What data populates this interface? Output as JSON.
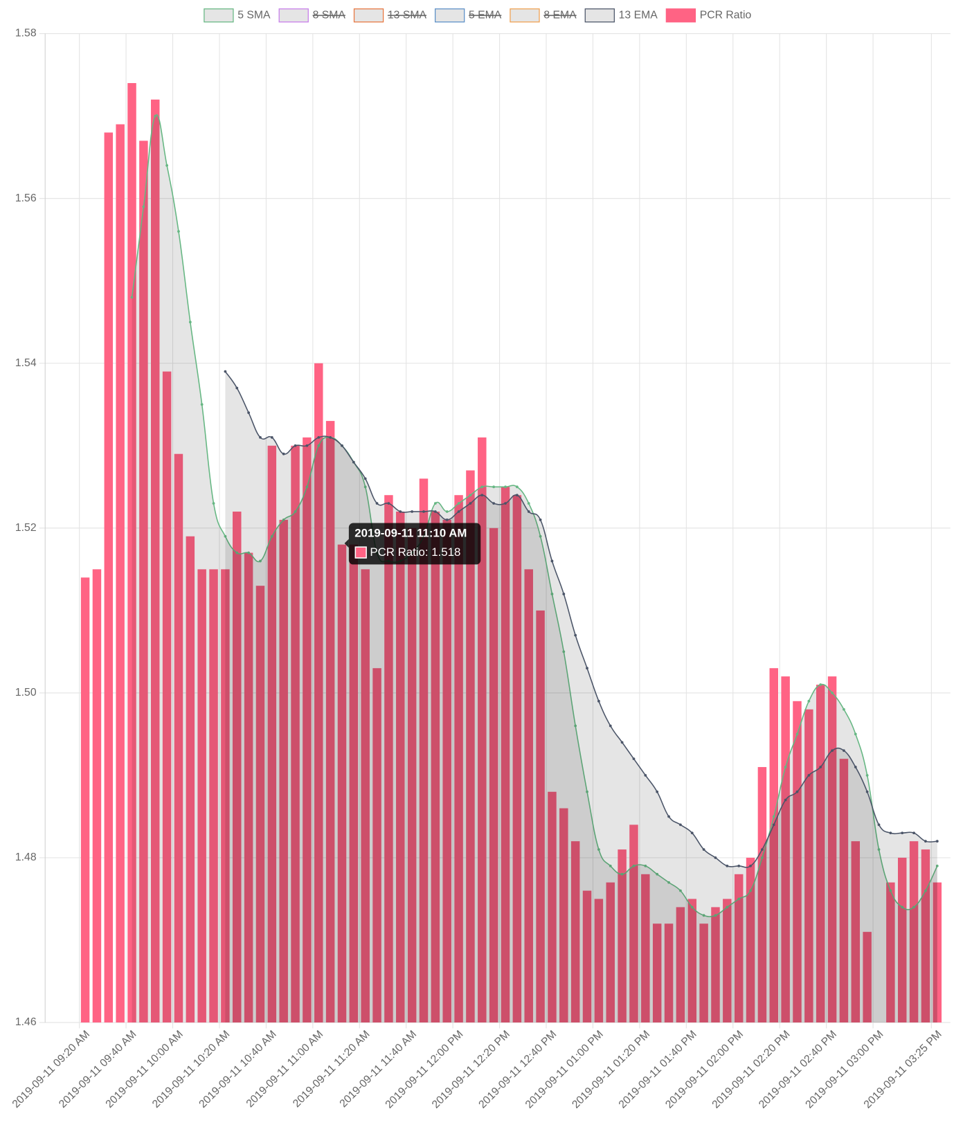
{
  "chart_data": {
    "type": "bar",
    "categories": [
      "2019-09-11 09:20 AM",
      null,
      null,
      null,
      "2019-09-11 09:40 AM",
      null,
      null,
      null,
      "2019-09-11 10:00 AM",
      null,
      null,
      null,
      "2019-09-11 10:20 AM",
      null,
      null,
      null,
      "2019-09-11 10:40 AM",
      null,
      null,
      null,
      "2019-09-11 11:00 AM",
      null,
      null,
      null,
      "2019-09-11 11:20 AM",
      null,
      null,
      null,
      "2019-09-11 11:40 AM",
      null,
      null,
      null,
      "2019-09-11 12:00 PM",
      null,
      null,
      null,
      "2019-09-11 12:20 PM",
      null,
      null,
      null,
      "2019-09-11 12:40 PM",
      null,
      null,
      null,
      "2019-09-11 01:00 PM",
      null,
      null,
      null,
      "2019-09-11 01:20 PM",
      null,
      null,
      null,
      "2019-09-11 01:40 PM",
      null,
      null,
      null,
      "2019-09-11 02:00 PM",
      null,
      null,
      null,
      "2019-09-11 02:20 PM",
      null,
      null,
      null,
      "2019-09-11 02:40 PM",
      null,
      null,
      null,
      "2019-09-11 03:00 PM",
      null,
      null,
      null,
      null,
      "2019-09-11 03:25 PM"
    ],
    "ylim": [
      1.46,
      1.58
    ],
    "yticks": [
      1.46,
      1.48,
      {
        "value": 1.5,
        "label": "1.50"
      },
      1.52,
      1.54,
      1.56,
      1.58
    ],
    "grid": true,
    "legend": "top",
    "series": [
      {
        "name": "5 SMA",
        "type": "line",
        "color": "#66b783",
        "fill": true,
        "values": [
          null,
          null,
          null,
          null,
          1.548,
          1.559,
          1.57,
          1.564,
          1.556,
          1.545,
          1.535,
          1.523,
          1.519,
          1.517,
          1.517,
          1.516,
          1.519,
          1.521,
          1.522,
          1.525,
          1.53,
          1.531,
          1.53,
          1.528,
          1.525,
          1.517,
          1.516,
          1.516,
          1.517,
          1.519,
          1.523,
          1.522,
          1.523,
          1.524,
          1.525,
          1.525,
          1.525,
          1.525,
          1.523,
          1.519,
          1.512,
          1.505,
          1.496,
          1.488,
          1.481,
          1.479,
          1.478,
          1.479,
          1.479,
          1.478,
          1.477,
          1.476,
          1.474,
          1.473,
          1.473,
          1.474,
          1.475,
          1.476,
          1.48,
          1.485,
          1.491,
          1.495,
          1.499,
          1.501,
          1.5,
          1.498,
          1.495,
          1.49,
          1.481,
          1.476,
          1.474,
          1.474,
          1.476,
          1.479
        ]
      },
      {
        "name": "8 SMA",
        "type": "line",
        "color": "#c77dea",
        "hidden": true
      },
      {
        "name": "13 SMA",
        "type": "line",
        "color": "#e8763f",
        "hidden": true
      },
      {
        "name": "5 EMA",
        "type": "line",
        "color": "#5b8fc7",
        "hidden": true
      },
      {
        "name": "8 EMA",
        "type": "line",
        "color": "#f0a050",
        "hidden": true
      },
      {
        "name": "13 EMA",
        "type": "line",
        "color": "#4b5568",
        "fill": true,
        "values": [
          null,
          null,
          null,
          null,
          null,
          null,
          null,
          null,
          null,
          null,
          null,
          null,
          1.539,
          1.537,
          1.534,
          1.531,
          1.531,
          1.529,
          1.53,
          1.53,
          1.531,
          1.531,
          1.53,
          1.528,
          1.526,
          1.523,
          1.523,
          1.522,
          1.522,
          1.522,
          1.522,
          1.521,
          1.522,
          1.523,
          1.524,
          1.523,
          1.523,
          1.524,
          1.522,
          1.521,
          1.516,
          1.512,
          1.507,
          1.503,
          1.499,
          1.496,
          1.494,
          1.492,
          1.49,
          1.488,
          1.485,
          1.484,
          1.483,
          1.481,
          1.48,
          1.479,
          1.479,
          1.479,
          1.481,
          1.484,
          1.487,
          1.488,
          1.49,
          1.491,
          1.493,
          1.493,
          1.491,
          1.488,
          1.484,
          1.483,
          1.483,
          1.483,
          1.482,
          1.482
        ]
      },
      {
        "name": "PCR Ratio",
        "type": "bar",
        "color": "#ff6384",
        "values": [
          1.514,
          1.515,
          1.568,
          1.569,
          1.574,
          1.567,
          1.572,
          1.539,
          1.529,
          1.519,
          1.515,
          1.515,
          1.515,
          1.522,
          1.517,
          1.513,
          1.53,
          1.521,
          1.53,
          1.531,
          1.54,
          1.533,
          1.518,
          1.518,
          1.515,
          1.503,
          1.524,
          1.522,
          1.52,
          1.526,
          1.522,
          1.521,
          1.524,
          1.527,
          1.531,
          1.52,
          1.525,
          1.524,
          1.515,
          1.51,
          1.488,
          1.486,
          1.482,
          1.476,
          1.475,
          1.477,
          1.481,
          1.484,
          1.478,
          1.472,
          1.472,
          1.474,
          1.475,
          1.472,
          1.474,
          1.475,
          1.478,
          1.48,
          1.491,
          1.503,
          1.502,
          1.499,
          1.498,
          1.501,
          1.502,
          1.492,
          1.482,
          1.471,
          1.458,
          1.477,
          1.48,
          1.482,
          1.481,
          1.477
        ]
      }
    ],
    "tooltip": {
      "title": "2019-09-11 11:10 AM",
      "label": "PCR Ratio: 1.518"
    }
  }
}
